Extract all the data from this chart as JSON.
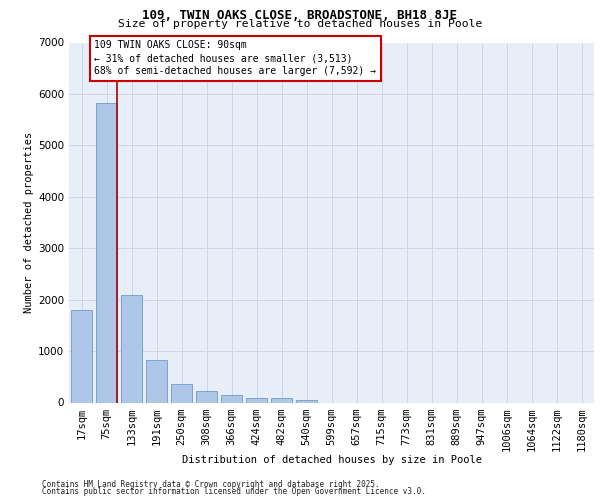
{
  "title_line1": "109, TWIN OAKS CLOSE, BROADSTONE, BH18 8JE",
  "title_line2": "Size of property relative to detached houses in Poole",
  "xlabel": "Distribution of detached houses by size in Poole",
  "ylabel": "Number of detached properties",
  "categories": [
    "17sqm",
    "75sqm",
    "133sqm",
    "191sqm",
    "250sqm",
    "308sqm",
    "366sqm",
    "424sqm",
    "482sqm",
    "540sqm",
    "599sqm",
    "657sqm",
    "715sqm",
    "773sqm",
    "831sqm",
    "889sqm",
    "947sqm",
    "1006sqm",
    "1064sqm",
    "1122sqm",
    "1180sqm"
  ],
  "values": [
    1800,
    5820,
    2090,
    830,
    360,
    230,
    140,
    90,
    95,
    40,
    0,
    0,
    0,
    0,
    0,
    0,
    0,
    0,
    0,
    0,
    0
  ],
  "bar_color": "#aec6e8",
  "bar_edge_color": "#5a8fc4",
  "vline_x": 1.43,
  "annotation_title": "109 TWIN OAKS CLOSE: 90sqm",
  "annotation_line2": "← 31% of detached houses are smaller (3,513)",
  "annotation_line3": "68% of semi-detached houses are larger (7,592) →",
  "ann_box_edge": "#cc0000",
  "vline_color": "#aa0000",
  "ylim_max": 7000,
  "yticks": [
    0,
    1000,
    2000,
    3000,
    4000,
    5000,
    6000,
    7000
  ],
  "grid_color": "#cdd5e8",
  "bg_color": "#e8eef8",
  "footer_line1": "Contains HM Land Registry data © Crown copyright and database right 2025.",
  "footer_line2": "Contains public sector information licensed under the Open Government Licence v3.0."
}
